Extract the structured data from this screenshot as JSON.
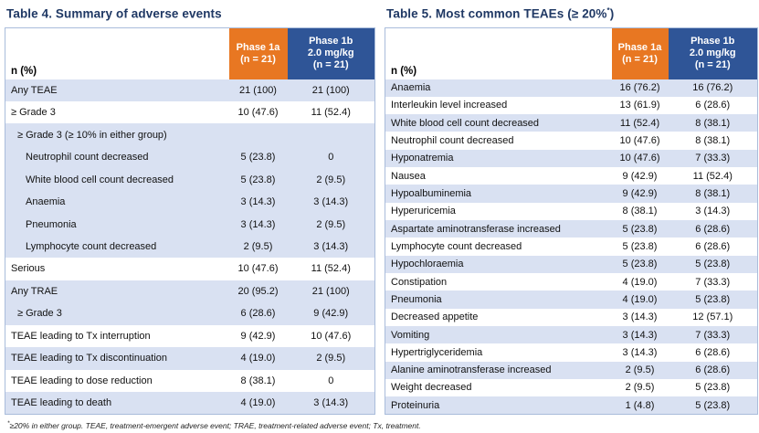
{
  "colors": {
    "accent_orange": "#E87722",
    "accent_blue": "#2F5597",
    "title_navy": "#1F3864",
    "row_shade_blue": "#D9E1F2",
    "table_border": "#A9BCDB"
  },
  "tables": [
    {
      "title_prefix": "Table 4. Summary of adverse events",
      "title_sup": "",
      "title_suffix": "",
      "corner_label": "n (%)",
      "columns": [
        {
          "id": "phase-1a",
          "lines": [
            "Phase 1a",
            "(n = 21)"
          ],
          "bg": "#E87722"
        },
        {
          "id": "phase-1b",
          "lines": [
            "Phase 1b",
            "2.0 mg/kg",
            "(n = 21)"
          ],
          "bg": "#2F5597"
        }
      ],
      "rows": [
        {
          "label": "Any TEAE",
          "v1": "21 (100)",
          "v2": "21 (100)",
          "shaded": true,
          "indent": 0
        },
        {
          "label": "≥ Grade 3",
          "v1": "10 (47.6)",
          "v2": "11 (52.4)",
          "shaded": false,
          "indent": 0
        },
        {
          "label": "≥ Grade 3 (≥ 10% in either group)",
          "v1": "",
          "v2": "",
          "shaded": true,
          "indent": 1
        },
        {
          "label": "Neutrophil count decreased",
          "v1": "5 (23.8)",
          "v2": "0",
          "shaded": true,
          "indent": 2
        },
        {
          "label": "White blood cell count decreased",
          "v1": "5 (23.8)",
          "v2": "2 (9.5)",
          "shaded": true,
          "indent": 2
        },
        {
          "label": "Anaemia",
          "v1": "3 (14.3)",
          "v2": "3 (14.3)",
          "shaded": true,
          "indent": 2
        },
        {
          "label": "Pneumonia",
          "v1": "3 (14.3)",
          "v2": "2 (9.5)",
          "shaded": true,
          "indent": 2
        },
        {
          "label": "Lymphocyte count decreased",
          "v1": "2 (9.5)",
          "v2": "3 (14.3)",
          "shaded": true,
          "indent": 2
        },
        {
          "label": "Serious",
          "v1": "10 (47.6)",
          "v2": "11 (52.4)",
          "shaded": false,
          "indent": 0
        },
        {
          "label": "Any TRAE",
          "v1": "20 (95.2)",
          "v2": "21 (100)",
          "shaded": true,
          "indent": 0
        },
        {
          "label": "≥ Grade 3",
          "v1": "6 (28.6)",
          "v2": "9 (42.9)",
          "shaded": true,
          "indent": 1
        },
        {
          "label": "TEAE leading to Tx interruption",
          "v1": "9 (42.9)",
          "v2": "10 (47.6)",
          "shaded": false,
          "indent": 0
        },
        {
          "label": "TEAE leading to Tx discontinuation",
          "v1": "4 (19.0)",
          "v2": "2 (9.5)",
          "shaded": true,
          "indent": 0
        },
        {
          "label": "TEAE leading to dose reduction",
          "v1": "8 (38.1)",
          "v2": "0",
          "shaded": false,
          "indent": 0
        },
        {
          "label": "TEAE leading to death",
          "v1": "4 (19.0)",
          "v2": "3 (14.3)",
          "shaded": true,
          "indent": 0
        }
      ]
    },
    {
      "title_prefix": "Table 5. Most common TEAEs (≥ 20%",
      "title_sup": "*",
      "title_suffix": ")",
      "corner_label": "n (%)",
      "columns": [
        {
          "id": "phase-1a",
          "lines": [
            "Phase 1a",
            "(n = 21)"
          ],
          "bg": "#E87722"
        },
        {
          "id": "phase-1b",
          "lines": [
            "Phase 1b",
            "2.0 mg/kg",
            "(n = 21)"
          ],
          "bg": "#2F5597"
        }
      ],
      "rows": [
        {
          "label": "Anaemia",
          "v1": "16 (76.2)",
          "v2": "16 (76.2)",
          "shaded": true,
          "indent": 0
        },
        {
          "label": "Interleukin level increased",
          "v1": "13 (61.9)",
          "v2": "6 (28.6)",
          "shaded": false,
          "indent": 0
        },
        {
          "label": "White blood cell count decreased",
          "v1": "11 (52.4)",
          "v2": "8 (38.1)",
          "shaded": true,
          "indent": 0
        },
        {
          "label": "Neutrophil count decreased",
          "v1": "10 (47.6)",
          "v2": "8 (38.1)",
          "shaded": false,
          "indent": 0
        },
        {
          "label": "Hyponatremia",
          "v1": "10 (47.6)",
          "v2": "7 (33.3)",
          "shaded": true,
          "indent": 0
        },
        {
          "label": "Nausea",
          "v1": "9 (42.9)",
          "v2": "11 (52.4)",
          "shaded": false,
          "indent": 0
        },
        {
          "label": "Hypoalbuminemia",
          "v1": "9 (42.9)",
          "v2": "8 (38.1)",
          "shaded": true,
          "indent": 0
        },
        {
          "label": "Hyperuricemia",
          "v1": "8 (38.1)",
          "v2": "3 (14.3)",
          "shaded": false,
          "indent": 0
        },
        {
          "label": "Aspartate aminotransferase increased",
          "v1": "5 (23.8)",
          "v2": "6 (28.6)",
          "shaded": true,
          "indent": 0
        },
        {
          "label": "Lymphocyte count decreased",
          "v1": "5 (23.8)",
          "v2": "6 (28.6)",
          "shaded": false,
          "indent": 0
        },
        {
          "label": "Hypochloraemia",
          "v1": "5 (23.8)",
          "v2": "5 (23.8)",
          "shaded": true,
          "indent": 0
        },
        {
          "label": "Constipation",
          "v1": "4 (19.0)",
          "v2": "7 (33.3)",
          "shaded": false,
          "indent": 0
        },
        {
          "label": "Pneumonia",
          "v1": "4 (19.0)",
          "v2": "5 (23.8)",
          "shaded": true,
          "indent": 0
        },
        {
          "label": "Decreased appetite",
          "v1": "3 (14.3)",
          "v2": "12 (57.1)",
          "shaded": false,
          "indent": 0
        },
        {
          "label": "Vomiting",
          "v1": "3 (14.3)",
          "v2": "7 (33.3)",
          "shaded": true,
          "indent": 0
        },
        {
          "label": "Hypertriglyceridemia",
          "v1": "3 (14.3)",
          "v2": "6 (28.6)",
          "shaded": false,
          "indent": 0
        },
        {
          "label": "Alanine aminotransferase increased",
          "v1": "2 (9.5)",
          "v2": "6 (28.6)",
          "shaded": true,
          "indent": 0
        },
        {
          "label": "Weight decreased",
          "v1": "2 (9.5)",
          "v2": "5 (23.8)",
          "shaded": false,
          "indent": 0
        },
        {
          "label": "Proteinuria",
          "v1": "1 (4.8)",
          "v2": "5 (23.8)",
          "shaded": true,
          "indent": 0
        }
      ]
    }
  ],
  "footnote": {
    "sup": "*",
    "text": "≥20% in either group. TEAE, treatment-emergent adverse event; TRAE, treatment-related adverse event; Tx, treatment."
  }
}
